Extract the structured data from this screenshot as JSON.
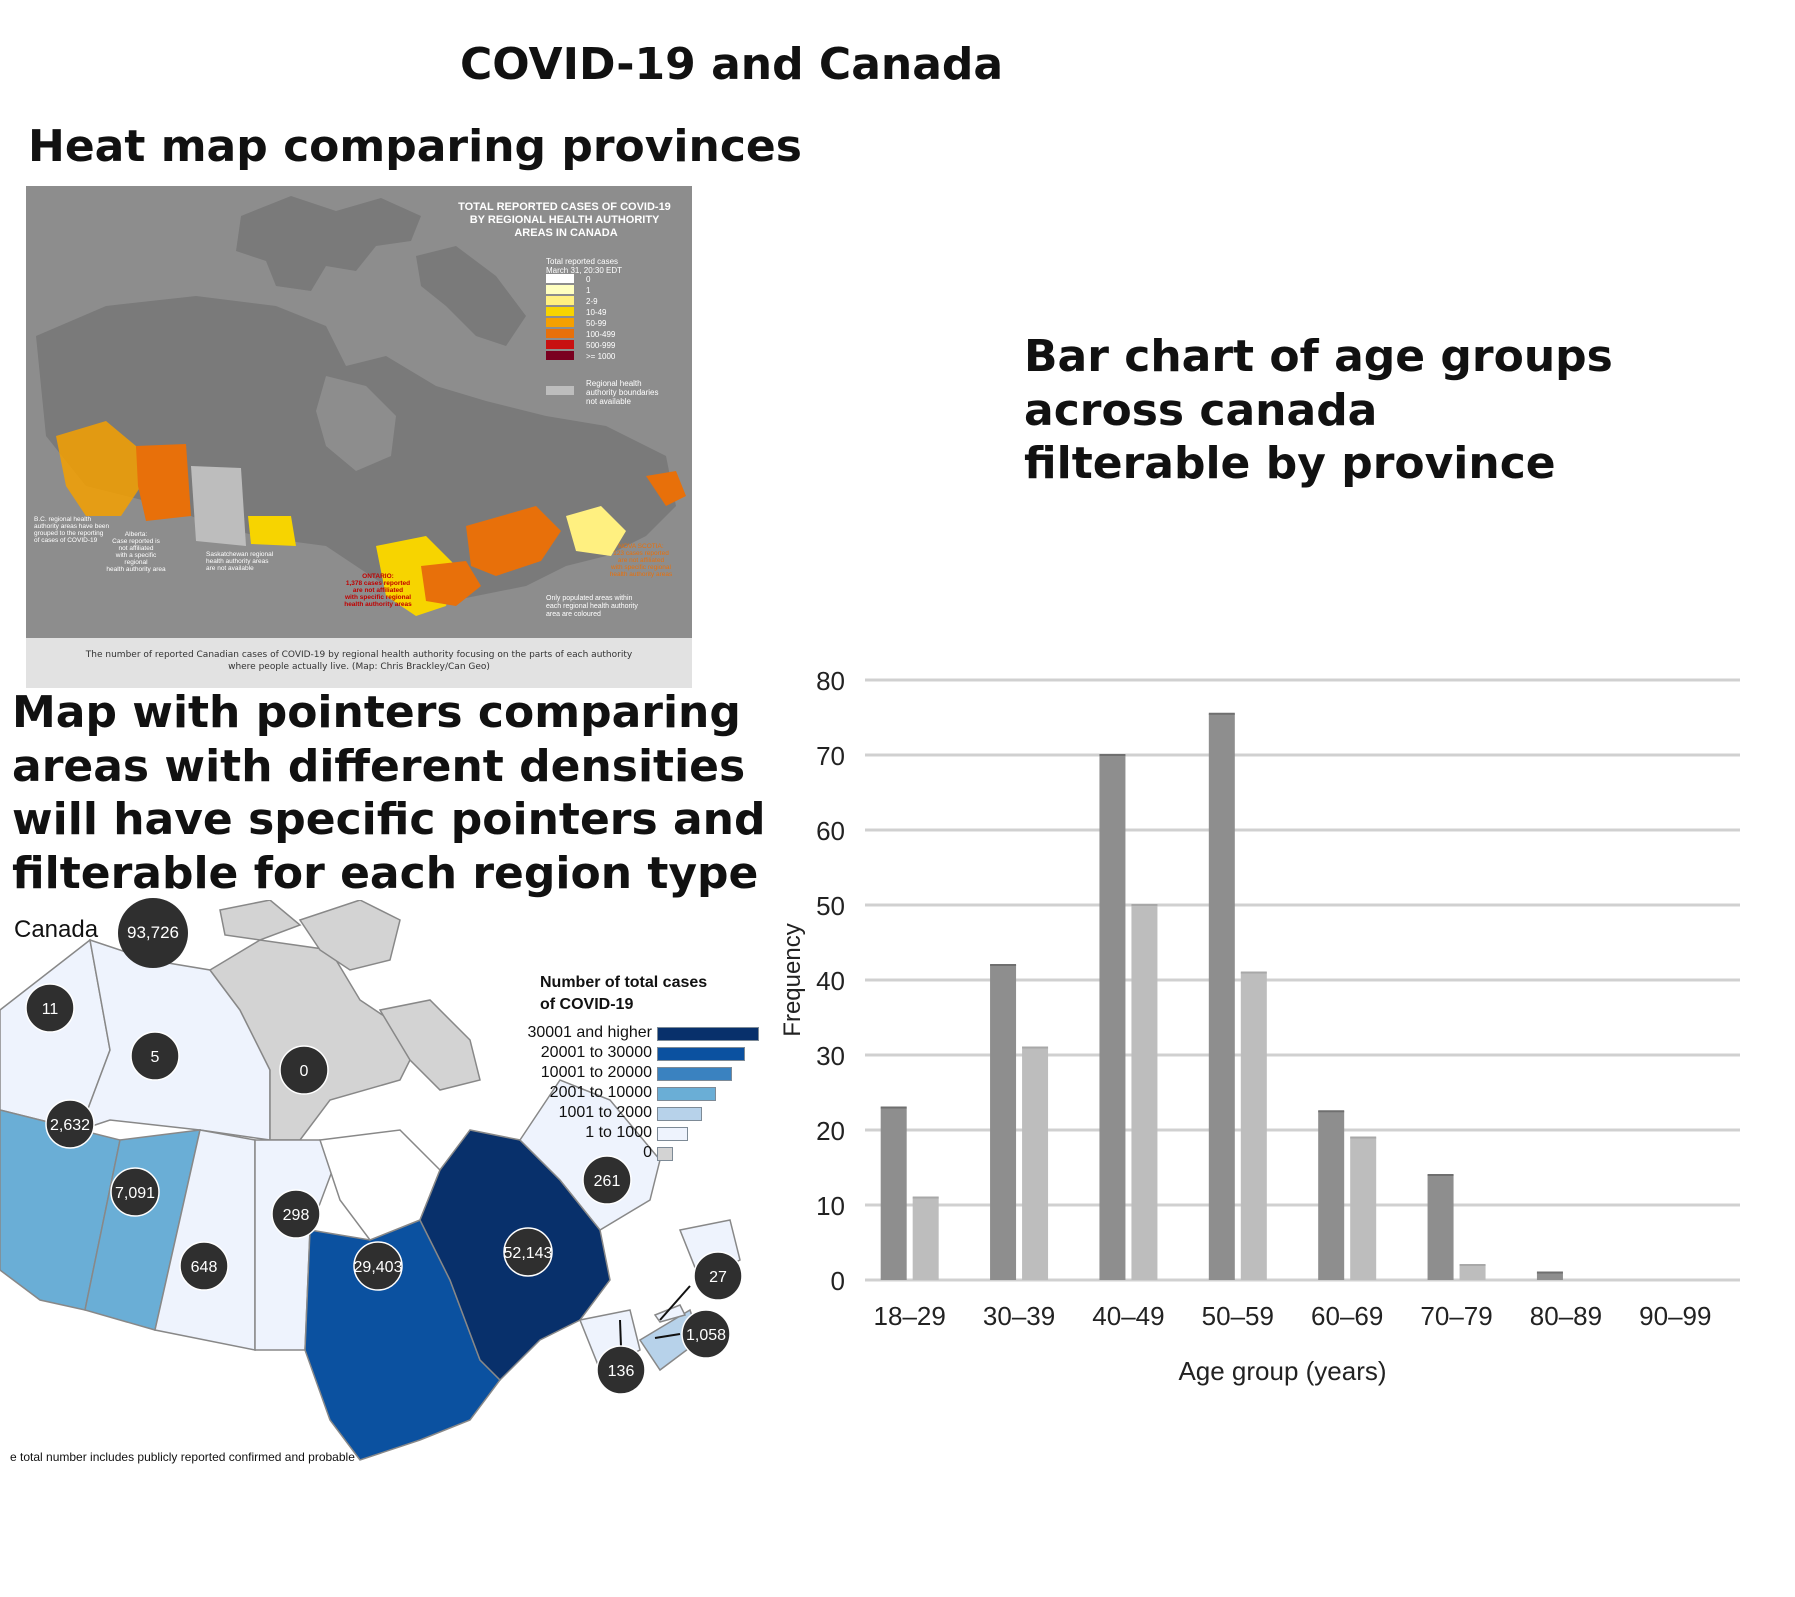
{
  "titles": {
    "main": "COVID-19 and Canada",
    "heat_map": "Heat map comparing provinces",
    "pointer_map": "Map with pointers comparing\nareas with different densities\nwill have specific pointers and\nfilterable for each region type",
    "bar_chart": "Bar chart of age groups\nacross canada\nfilterable by province"
  },
  "heat_map": {
    "title": "TOTAL REPORTED CASES OF COVID-19\nBY REGIONAL HEALTH AUTHORITY\nAREAS IN CANADA",
    "legend_header": "Total reported cases\nMarch 31, 20:30 EDT",
    "legend": [
      {
        "label": "0",
        "color": "#ffffff"
      },
      {
        "label": "1",
        "color": "#ffffc0"
      },
      {
        "label": "2-9",
        "color": "#fff080"
      },
      {
        "label": "10-49",
        "color": "#f7d400"
      },
      {
        "label": "50-99",
        "color": "#f5a000"
      },
      {
        "label": "100-499",
        "color": "#e8700a"
      },
      {
        "label": "500-999",
        "color": "#c81010"
      },
      {
        "label": ">= 1000",
        "color": "#7a0020"
      }
    ],
    "no_boundary_label": "Regional health\nauthority boundaries\nnot available",
    "notes": {
      "bc": "B.C. regional health\nauthority areas have been\ngrouped to the reporting\nof cases of COVID-19",
      "alberta": "Alberta:\nCase reported is\nnot affiliated\nwith a specific\nregional\nhealth authority area",
      "sask": "Saskatchewan regional\nhealth authority areas\nare not available",
      "ontario": "ONTARIO:\n1,378 cases reported\nare not affiliated\nwith specific regional\nhealth authority areas",
      "atlantic": "NOVA SCOTIA:\n123 cases reported\nare not affiliated\nwith specific regional\nhealth authority areas",
      "populated": "Only populated areas within\neach regional health authority\narea are coloured"
    },
    "caption": "The number of reported Canadian cases of COVID-19 by regional health authority focusing on the parts of each authority\nwhere people actually live. (Map: Chris Brackley/Can Geo)"
  },
  "pointer_map": {
    "canada_label": "Canada",
    "canada_total": "93,726",
    "legend_title": "Number of total cases\nof COVID-19",
    "legend": [
      {
        "label": "30001 and higher",
        "color": "#08306b",
        "fraction": 1.0
      },
      {
        "label": "20001 to 30000",
        "color": "#0b51a0",
        "fraction": 0.86
      },
      {
        "label": "10001 to 20000",
        "color": "#3a82c0",
        "fraction": 0.74
      },
      {
        "label": "2001 to 10000",
        "color": "#6aaed6",
        "fraction": 0.58
      },
      {
        "label": "1001 to 2000",
        "color": "#b7d2ea",
        "fraction": 0.44
      },
      {
        "label": "1 to 1000",
        "color": "#eef3fd",
        "fraction": 0.3
      },
      {
        "label": "0",
        "color": "#d3d3d3",
        "fraction": 0.16
      }
    ],
    "regions": [
      {
        "name": "yukon",
        "value": "11",
        "color": "#eef3fd"
      },
      {
        "name": "northwest-territories",
        "value": "5",
        "color": "#eef3fd"
      },
      {
        "name": "nunavut",
        "value": "0",
        "color": "#d3d3d3"
      },
      {
        "name": "british-columbia",
        "value": "2,632",
        "color": "#6aaed6"
      },
      {
        "name": "alberta",
        "value": "7,091",
        "color": "#6aaed6"
      },
      {
        "name": "saskatchewan",
        "value": "648",
        "color": "#eef3fd"
      },
      {
        "name": "manitoba",
        "value": "298",
        "color": "#eef3fd"
      },
      {
        "name": "ontario",
        "value": "29,403",
        "color": "#0b51a0"
      },
      {
        "name": "quebec",
        "value": "52,143",
        "color": "#08306b"
      },
      {
        "name": "newfoundland-labrador",
        "value": "261",
        "color": "#eef3fd"
      },
      {
        "name": "prince-edward-island",
        "value": "27",
        "color": "#eef3fd"
      },
      {
        "name": "nova-scotia",
        "value": "1,058",
        "color": "#b7d2ea"
      },
      {
        "name": "new-brunswick",
        "value": "136",
        "color": "#eef3fd"
      }
    ],
    "footnote": "e total number includes publicly reported confirmed and probable"
  },
  "chart_data": {
    "type": "bar",
    "categories": [
      "18–29",
      "30–39",
      "40–49",
      "50–59",
      "60–69",
      "70–79",
      "80–89",
      "90–99"
    ],
    "series": [
      {
        "values": [
          23,
          42,
          70,
          75.5,
          22.5,
          14,
          1,
          0
        ],
        "color": "#8e8e8e"
      },
      {
        "values": [
          11,
          31,
          50,
          41,
          19,
          2,
          0,
          0
        ],
        "color": "#bdbdbd"
      }
    ],
    "xlabel": "Age group (years)",
    "ylabel": "Frequency",
    "ylim": [
      0,
      80
    ],
    "yticks": [
      0,
      10,
      20,
      30,
      40,
      50,
      60,
      70,
      80
    ],
    "grid": true
  }
}
